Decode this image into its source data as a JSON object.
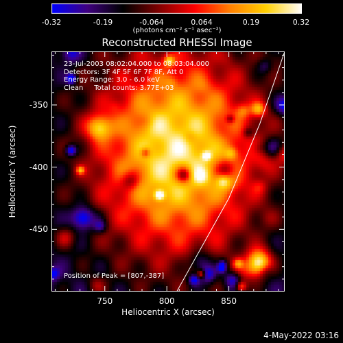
{
  "colorbar": {
    "ticks": [
      "-0.32",
      "-0.19",
      "-0.064",
      "0.064",
      "0.19",
      "0.32"
    ],
    "tick_values": [
      -0.32,
      -0.19,
      -0.064,
      0.064,
      0.19,
      0.32
    ],
    "units": "(photons cm⁻² s⁻¹ asec⁻²)",
    "colors": [
      "#0000ff",
      "#400080",
      "#000000",
      "#800000",
      "#ff0000",
      "#ff8000",
      "#ffd000",
      "#ffffff"
    ]
  },
  "chart_data": {
    "type": "heatmap",
    "title": "Reconstructed RHESSI Image",
    "xlabel": "Heliocentric X (arcsec)",
    "ylabel": "Heliocentric Y (arcsec)",
    "xlim": [
      707,
      895
    ],
    "ylim": [
      -500,
      -307
    ],
    "x_ticks": [
      750,
      800,
      850
    ],
    "y_ticks": [
      -350,
      -400,
      -450
    ],
    "limb_curve_points": [
      [
        808,
        -500
      ],
      [
        850,
        -425
      ],
      [
        875,
        -365
      ],
      [
        895,
        -307
      ]
    ],
    "peak_position": [
      807,
      -387
    ],
    "annotations": [
      "23-Jul-2003 08:02:04.000 to 08:03:04.000",
      "Detectors: 3F 4F 5F 6F 7F 8F, Att 0",
      "Energy Range: 3.0 - 6.0 keV",
      "Clean     Total counts: 3.77E+03"
    ],
    "peak_label": "Position of Peak = [807,-387]"
  },
  "footer": {
    "timestamp": "4-May-2022 03:16"
  }
}
